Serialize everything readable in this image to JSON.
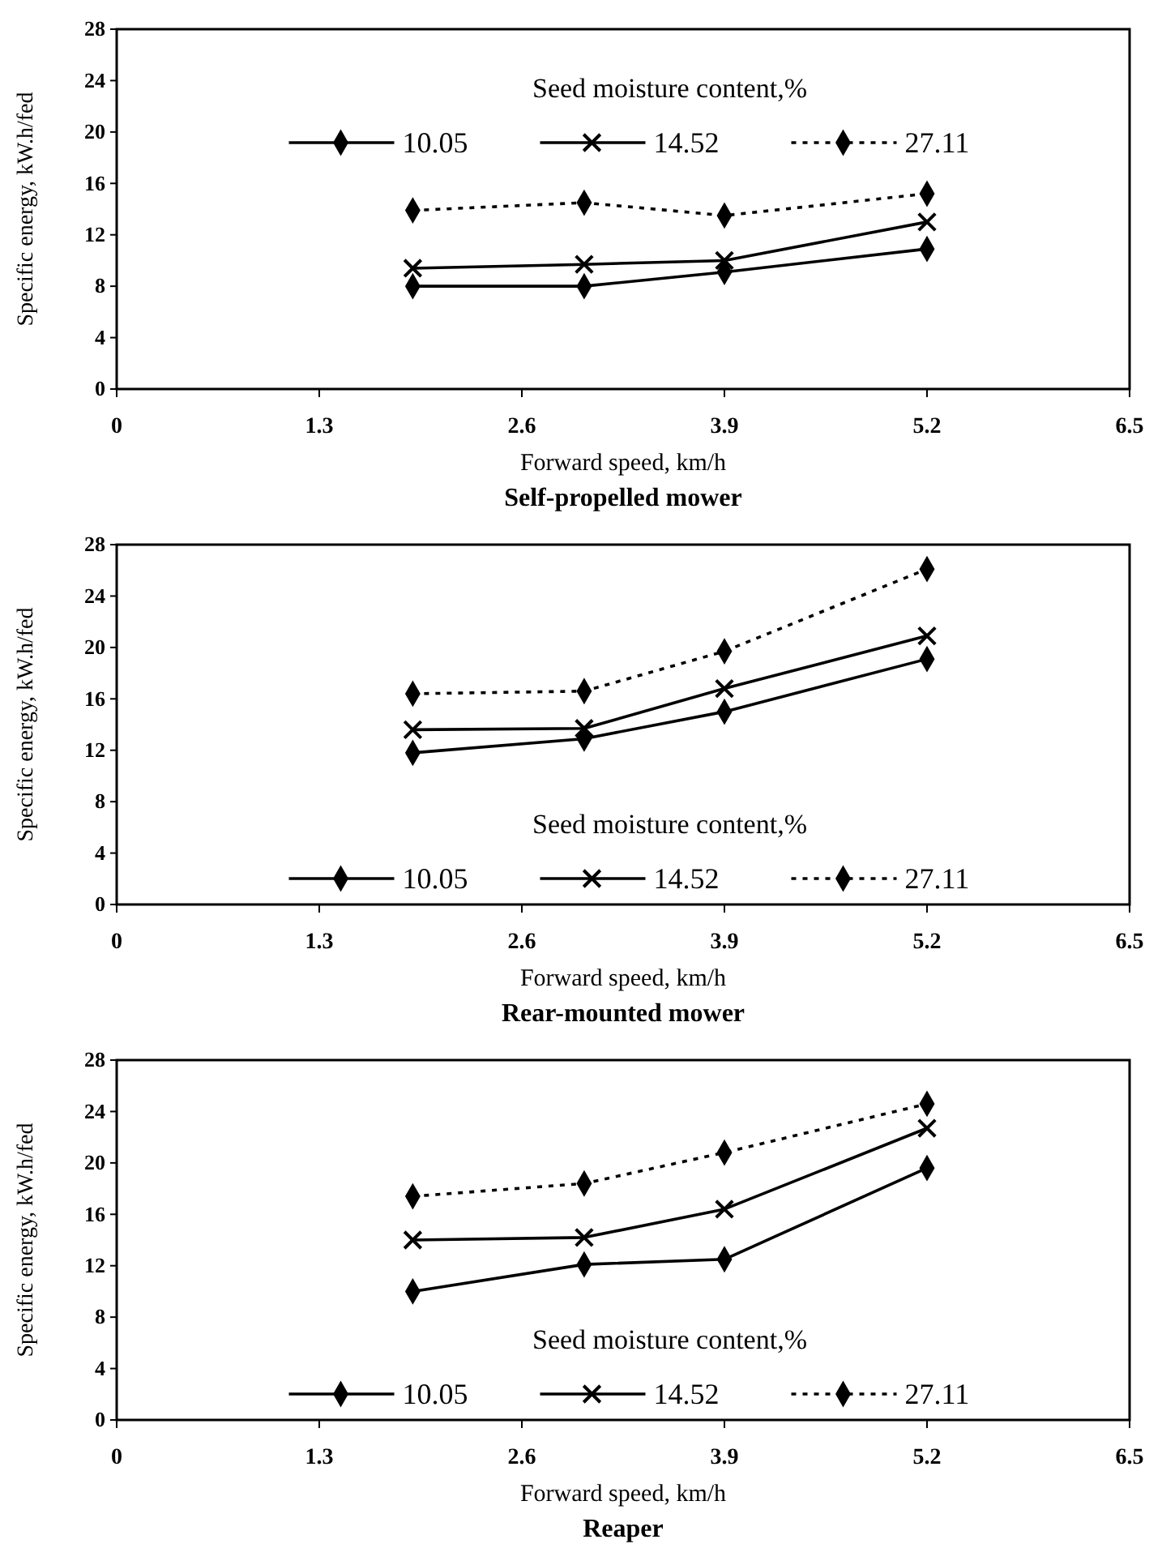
{
  "chart_data": [
    {
      "type": "line",
      "title": "Self-propelled mower",
      "xlabel": "Forward speed, km/h",
      "ylabel": "Specific energy, kW.h/fed",
      "legend_title": "Seed moisture content,%",
      "legend": "top",
      "xlim": [
        0,
        6.5
      ],
      "xticks": [
        0,
        1.3,
        2.6,
        3.9,
        5.2,
        6.5
      ],
      "ylim": [
        0,
        28
      ],
      "yticks": [
        0,
        4,
        8,
        12,
        16,
        20,
        24,
        28
      ],
      "x": [
        1.9,
        3.0,
        3.9,
        5.2
      ],
      "series": [
        {
          "name": "10.05",
          "color": "#000000",
          "marker": "diamond",
          "line_style": "solid",
          "values": [
            8.0,
            8.0,
            9.1,
            10.9
          ]
        },
        {
          "name": "14.52",
          "color": "#000000",
          "marker": "cross",
          "line_style": "solid",
          "values": [
            9.4,
            9.7,
            10.0,
            13.0
          ]
        },
        {
          "name": "27.11",
          "color": "#000000",
          "marker": "diamond",
          "line_style": "dotted",
          "values": [
            13.9,
            14.5,
            13.5,
            15.2
          ]
        }
      ]
    },
    {
      "type": "line",
      "title": "Rear-mounted mower",
      "xlabel": "Forward speed, km/h",
      "ylabel": "Specific energy, kW.h/fed",
      "legend_title": "Seed moisture content,%",
      "legend": "bottom",
      "xlim": [
        0,
        6.5
      ],
      "xticks": [
        0,
        1.3,
        2.6,
        3.9,
        5.2,
        6.5
      ],
      "ylim": [
        0,
        28
      ],
      "yticks": [
        0,
        4,
        8,
        12,
        16,
        20,
        24,
        28
      ],
      "x": [
        1.9,
        3.0,
        3.9,
        5.2
      ],
      "series": [
        {
          "name": "10.05",
          "color": "#000000",
          "marker": "diamond",
          "line_style": "solid",
          "values": [
            11.8,
            12.9,
            15.0,
            19.1
          ]
        },
        {
          "name": "14.52",
          "color": "#000000",
          "marker": "cross",
          "line_style": "solid",
          "values": [
            13.6,
            13.7,
            16.8,
            20.9
          ]
        },
        {
          "name": "27.11",
          "color": "#000000",
          "marker": "diamond",
          "line_style": "dotted",
          "values": [
            16.4,
            16.6,
            19.7,
            26.1
          ]
        }
      ]
    },
    {
      "type": "line",
      "title": "Reaper",
      "xlabel": "Forward speed, km/h",
      "ylabel": "Specific energy, kW.h/fed",
      "legend_title": "Seed moisture content,%",
      "legend": "bottom",
      "xlim": [
        0,
        6.5
      ],
      "xticks": [
        0,
        1.3,
        2.6,
        3.9,
        5.2,
        6.5
      ],
      "ylim": [
        0,
        28
      ],
      "yticks": [
        0,
        4,
        8,
        12,
        16,
        20,
        24,
        28
      ],
      "x": [
        1.9,
        3.0,
        3.9,
        5.2
      ],
      "series": [
        {
          "name": "10.05",
          "color": "#000000",
          "marker": "diamond",
          "line_style": "solid",
          "values": [
            10.0,
            12.1,
            12.5,
            19.6
          ]
        },
        {
          "name": "14.52",
          "color": "#000000",
          "marker": "cross",
          "line_style": "solid",
          "values": [
            14.0,
            14.2,
            16.4,
            22.7
          ]
        },
        {
          "name": "27.11",
          "color": "#000000",
          "marker": "diamond",
          "line_style": "dotted",
          "values": [
            17.4,
            18.4,
            20.8,
            24.6
          ]
        }
      ]
    }
  ]
}
